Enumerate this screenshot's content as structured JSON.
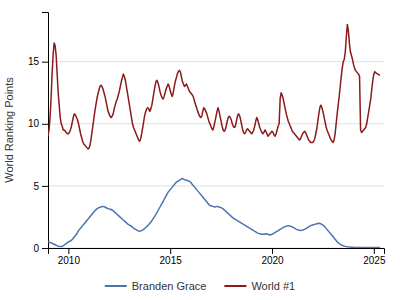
{
  "chart_data": {
    "type": "line",
    "ylabel": "World Ranking Points",
    "xlim": [
      2009.0,
      2025.5
    ],
    "ylim": [
      0,
      19
    ],
    "xticks": [
      2010,
      2015,
      2020,
      2025
    ],
    "yticks": [
      0,
      5,
      10,
      15
    ],
    "grid": "y",
    "legend": "bottom",
    "series": [
      {
        "name": "Branden Grace",
        "color": "#4c72b0",
        "x": [
          2009.0,
          2009.1,
          2009.3,
          2009.5,
          2009.7,
          2010.0,
          2010.1,
          2010.2,
          2010.3,
          2010.4,
          2010.5,
          2010.6,
          2010.7,
          2010.8,
          2010.9,
          2011.0,
          2011.1,
          2011.2,
          2011.3,
          2011.4,
          2011.5,
          2011.6,
          2011.7,
          2011.8,
          2011.9,
          2012.0,
          2012.1,
          2012.2,
          2012.3,
          2012.4,
          2012.5,
          2012.6,
          2012.7,
          2012.8,
          2012.9,
          2013.0,
          2013.1,
          2013.2,
          2013.3,
          2013.4,
          2013.5,
          2013.6,
          2013.7,
          2013.8,
          2013.9,
          2014.0,
          2014.1,
          2014.2,
          2014.3,
          2014.4,
          2014.5,
          2014.6,
          2014.7,
          2014.8,
          2014.9,
          2015.0,
          2015.05,
          2015.1,
          2015.15,
          2015.2,
          2015.25,
          2015.3,
          2015.35,
          2015.4,
          2015.45,
          2015.5,
          2015.55,
          2015.6,
          2015.65,
          2015.7,
          2015.8,
          2015.9,
          2016.0,
          2016.1,
          2016.2,
          2016.3,
          2016.4,
          2016.5,
          2016.6,
          2016.7,
          2016.8,
          2016.9,
          2017.0,
          2017.1,
          2017.2,
          2017.3,
          2017.4,
          2017.5,
          2017.6,
          2017.7,
          2017.8,
          2017.9,
          2018.0,
          2018.1,
          2018.2,
          2018.3,
          2018.4,
          2018.5,
          2018.6,
          2018.7,
          2018.8,
          2018.9,
          2019.0,
          2019.1,
          2019.2,
          2019.3,
          2019.4,
          2019.5,
          2019.6,
          2019.7,
          2019.8,
          2019.9,
          2020.0,
          2020.1,
          2020.2,
          2020.3,
          2020.4,
          2020.5,
          2020.6,
          2020.7,
          2020.8,
          2020.9,
          2021.0,
          2021.1,
          2021.2,
          2021.3,
          2021.4,
          2021.5,
          2021.6,
          2021.7,
          2021.8,
          2021.9,
          2022.0,
          2022.1,
          2022.2,
          2022.3,
          2022.4,
          2022.5,
          2022.6,
          2022.7,
          2022.8,
          2022.9,
          2023.0,
          2023.1,
          2023.2,
          2023.3,
          2023.4,
          2023.5,
          2023.6,
          2023.7,
          2023.8,
          2023.9,
          2024.0,
          2024.2,
          2024.5,
          2024.8,
          2025.0,
          2025.3
        ],
        "values": [
          0.5,
          0.45,
          0.3,
          0.15,
          0.12,
          0.5,
          0.55,
          0.7,
          0.9,
          1.1,
          1.4,
          1.6,
          1.8,
          2.0,
          2.2,
          2.4,
          2.6,
          2.8,
          3.0,
          3.15,
          3.25,
          3.3,
          3.35,
          3.3,
          3.2,
          3.15,
          3.1,
          3.0,
          2.85,
          2.7,
          2.55,
          2.4,
          2.25,
          2.1,
          1.95,
          1.85,
          1.75,
          1.6,
          1.5,
          1.4,
          1.35,
          1.4,
          1.5,
          1.65,
          1.8,
          2.0,
          2.2,
          2.45,
          2.7,
          3.0,
          3.3,
          3.6,
          3.9,
          4.2,
          4.5,
          4.7,
          4.8,
          4.9,
          5.0,
          5.1,
          5.2,
          5.3,
          5.35,
          5.4,
          5.45,
          5.5,
          5.55,
          5.6,
          5.55,
          5.5,
          5.45,
          5.4,
          5.3,
          5.1,
          4.9,
          4.7,
          4.5,
          4.3,
          4.1,
          3.9,
          3.7,
          3.5,
          3.4,
          3.35,
          3.3,
          3.35,
          3.3,
          3.25,
          3.15,
          3.0,
          2.85,
          2.7,
          2.55,
          2.4,
          2.3,
          2.2,
          2.1,
          2.0,
          1.9,
          1.8,
          1.7,
          1.6,
          1.5,
          1.4,
          1.3,
          1.2,
          1.15,
          1.1,
          1.1,
          1.15,
          1.1,
          1.05,
          1.1,
          1.2,
          1.3,
          1.4,
          1.5,
          1.6,
          1.7,
          1.75,
          1.8,
          1.75,
          1.7,
          1.6,
          1.5,
          1.45,
          1.4,
          1.45,
          1.5,
          1.6,
          1.7,
          1.8,
          1.85,
          1.9,
          1.95,
          2.0,
          1.95,
          1.85,
          1.7,
          1.5,
          1.3,
          1.1,
          0.9,
          0.7,
          0.5,
          0.35,
          0.25,
          0.18,
          0.13,
          0.1,
          0.08,
          0.07,
          0.06,
          0.05,
          0.05,
          0.04,
          0.04,
          0.05
        ]
      },
      {
        "name": "World #1",
        "color": "#8b1a1a",
        "x": [
          2009.0,
          2009.05,
          2009.1,
          2009.15,
          2009.2,
          2009.25,
          2009.3,
          2009.35,
          2009.4,
          2009.45,
          2009.5,
          2009.55,
          2009.6,
          2009.65,
          2009.7,
          2009.75,
          2009.8,
          2009.85,
          2009.9,
          2009.95,
          2010.0,
          2010.05,
          2010.1,
          2010.15,
          2010.2,
          2010.25,
          2010.3,
          2010.35,
          2010.4,
          2010.45,
          2010.5,
          2010.55,
          2010.6,
          2010.65,
          2010.7,
          2010.75,
          2010.8,
          2010.85,
          2010.9,
          2010.95,
          2011.0,
          2011.05,
          2011.1,
          2011.15,
          2011.2,
          2011.25,
          2011.3,
          2011.35,
          2011.4,
          2011.45,
          2011.5,
          2011.55,
          2011.6,
          2011.65,
          2011.7,
          2011.75,
          2011.8,
          2011.85,
          2011.9,
          2011.95,
          2012.0,
          2012.05,
          2012.1,
          2012.15,
          2012.2,
          2012.25,
          2012.3,
          2012.35,
          2012.4,
          2012.45,
          2012.5,
          2012.55,
          2012.6,
          2012.65,
          2012.7,
          2012.75,
          2012.8,
          2012.85,
          2012.9,
          2012.95,
          2013.0,
          2013.05,
          2013.1,
          2013.15,
          2013.2,
          2013.25,
          2013.3,
          2013.35,
          2013.4,
          2013.45,
          2013.5,
          2013.55,
          2013.6,
          2013.65,
          2013.7,
          2013.75,
          2013.8,
          2013.85,
          2013.9,
          2013.95,
          2014.0,
          2014.05,
          2014.1,
          2014.15,
          2014.2,
          2014.25,
          2014.3,
          2014.35,
          2014.4,
          2014.45,
          2014.5,
          2014.55,
          2014.6,
          2014.65,
          2014.7,
          2014.75,
          2014.8,
          2014.85,
          2014.9,
          2014.95,
          2015.0,
          2015.05,
          2015.1,
          2015.15,
          2015.2,
          2015.25,
          2015.3,
          2015.35,
          2015.4,
          2015.45,
          2015.5,
          2015.55,
          2015.6,
          2015.65,
          2015.7,
          2015.75,
          2015.8,
          2015.85,
          2015.9,
          2015.95,
          2016.0,
          2016.05,
          2016.1,
          2016.15,
          2016.2,
          2016.25,
          2016.3,
          2016.35,
          2016.4,
          2016.45,
          2016.5,
          2016.55,
          2016.6,
          2016.65,
          2016.7,
          2016.75,
          2016.8,
          2016.85,
          2016.9,
          2016.95,
          2017.0,
          2017.05,
          2017.1,
          2017.15,
          2017.2,
          2017.25,
          2017.3,
          2017.35,
          2017.4,
          2017.45,
          2017.5,
          2017.55,
          2017.6,
          2017.65,
          2017.7,
          2017.75,
          2017.8,
          2017.85,
          2017.9,
          2017.95,
          2018.0,
          2018.05,
          2018.1,
          2018.15,
          2018.2,
          2018.25,
          2018.3,
          2018.35,
          2018.4,
          2018.45,
          2018.5,
          2018.55,
          2018.6,
          2018.65,
          2018.7,
          2018.75,
          2018.8,
          2018.85,
          2018.9,
          2018.95,
          2019.0,
          2019.05,
          2019.1,
          2019.15,
          2019.2,
          2019.25,
          2019.3,
          2019.35,
          2019.4,
          2019.45,
          2019.5,
          2019.55,
          2019.6,
          2019.65,
          2019.7,
          2019.75,
          2019.8,
          2019.85,
          2019.9,
          2019.95,
          2020.0,
          2020.05,
          2020.1,
          2020.15,
          2020.2,
          2020.25,
          2020.3,
          2020.35,
          2020.4,
          2020.45,
          2020.5,
          2020.55,
          2020.6,
          2020.65,
          2020.7,
          2020.75,
          2020.8,
          2020.85,
          2020.9,
          2020.95,
          2021.0,
          2021.05,
          2021.1,
          2021.15,
          2021.2,
          2021.25,
          2021.3,
          2021.35,
          2021.4,
          2021.45,
          2021.5,
          2021.55,
          2021.6,
          2021.65,
          2021.7,
          2021.75,
          2021.8,
          2021.85,
          2021.9,
          2021.95,
          2022.0,
          2022.05,
          2022.1,
          2022.15,
          2022.2,
          2022.25,
          2022.3,
          2022.35,
          2022.4,
          2022.45,
          2022.5,
          2022.55,
          2022.6,
          2022.65,
          2022.7,
          2022.75,
          2022.8,
          2022.85,
          2022.9,
          2022.95,
          2023.0,
          2023.05,
          2023.1,
          2023.15,
          2023.2,
          2023.25,
          2023.3,
          2023.35,
          2023.4,
          2023.45,
          2023.5,
          2023.55,
          2023.6,
          2023.65,
          2023.7,
          2023.75,
          2023.8,
          2023.85,
          2023.9,
          2023.95,
          2024.0,
          2024.05,
          2024.1,
          2024.15,
          2024.2,
          2024.25,
          2024.3,
          2024.35,
          2024.4,
          2024.45,
          2024.5,
          2024.55,
          2024.6,
          2024.65,
          2024.7,
          2024.75,
          2024.8,
          2024.85,
          2024.9,
          2024.95,
          2025.0,
          2025.05,
          2025.1,
          2025.2,
          2025.3
        ],
        "values": [
          9.0,
          9.5,
          10.5,
          12.0,
          14.0,
          15.5,
          16.5,
          16.3,
          15.5,
          14.0,
          12.5,
          11.5,
          10.5,
          10.0,
          9.8,
          9.5,
          9.5,
          9.4,
          9.3,
          9.2,
          9.2,
          9.3,
          9.5,
          9.8,
          10.2,
          10.6,
          10.8,
          10.7,
          10.5,
          10.3,
          10.0,
          9.6,
          9.2,
          8.9,
          8.6,
          8.4,
          8.3,
          8.2,
          8.1,
          8.0,
          8.0,
          8.2,
          8.6,
          9.2,
          9.8,
          10.4,
          11.0,
          11.5,
          12.0,
          12.4,
          12.7,
          13.0,
          13.1,
          13.0,
          12.8,
          12.5,
          12.2,
          11.8,
          11.4,
          11.0,
          10.8,
          10.6,
          10.5,
          10.6,
          10.8,
          11.2,
          11.5,
          11.8,
          12.0,
          12.3,
          12.6,
          13.0,
          13.4,
          13.7,
          14.0,
          13.8,
          13.5,
          13.0,
          12.5,
          12.0,
          11.5,
          11.0,
          10.5,
          10.0,
          9.7,
          9.5,
          9.3,
          9.1,
          8.9,
          8.7,
          8.6,
          8.8,
          9.2,
          9.7,
          10.2,
          10.7,
          11.0,
          11.2,
          11.3,
          11.2,
          11.0,
          11.2,
          11.5,
          12.0,
          12.5,
          13.0,
          13.4,
          13.5,
          13.3,
          13.0,
          12.6,
          12.3,
          12.1,
          12.0,
          12.2,
          12.5,
          12.8,
          13.0,
          13.2,
          13.0,
          12.7,
          12.4,
          12.2,
          12.5,
          13.0,
          13.4,
          13.7,
          14.0,
          14.2,
          14.3,
          14.2,
          13.8,
          13.4,
          13.2,
          13.0,
          13.1,
          13.2,
          13.0,
          12.8,
          12.6,
          12.5,
          12.4,
          12.3,
          12.1,
          11.8,
          11.5,
          11.3,
          11.0,
          10.8,
          10.6,
          10.5,
          10.6,
          11.0,
          11.3,
          11.2,
          11.0,
          10.8,
          10.5,
          10.2,
          10.0,
          9.8,
          9.6,
          9.5,
          9.8,
          10.2,
          10.6,
          11.0,
          11.3,
          11.0,
          10.6,
          10.2,
          9.8,
          9.5,
          9.4,
          9.5,
          9.8,
          10.2,
          10.5,
          10.6,
          10.5,
          10.3,
          10.0,
          9.8,
          9.7,
          9.8,
          10.2,
          10.6,
          10.8,
          10.7,
          10.4,
          10.0,
          9.6,
          9.3,
          9.2,
          9.3,
          9.5,
          9.6,
          9.5,
          9.4,
          9.3,
          9.2,
          9.3,
          9.5,
          9.8,
          10.2,
          10.5,
          10.3,
          10.0,
          9.7,
          9.5,
          9.3,
          9.2,
          9.3,
          9.5,
          9.4,
          9.2,
          9.0,
          9.1,
          9.2,
          9.3,
          9.4,
          9.3,
          9.1,
          9.0,
          9.2,
          9.5,
          9.8,
          10.0,
          12.0,
          12.5,
          12.3,
          12.0,
          11.6,
          11.2,
          10.8,
          10.5,
          10.2,
          10.0,
          9.8,
          9.6,
          9.4,
          9.3,
          9.2,
          9.1,
          9.0,
          8.9,
          8.8,
          8.7,
          8.8,
          9.0,
          9.2,
          9.3,
          9.4,
          9.3,
          9.1,
          8.9,
          8.7,
          8.6,
          8.5,
          8.5,
          8.5,
          8.6,
          8.8,
          9.2,
          9.6,
          10.2,
          10.8,
          11.3,
          11.5,
          11.3,
          11.0,
          10.6,
          10.2,
          9.8,
          9.5,
          9.3,
          9.1,
          8.9,
          8.7,
          8.6,
          8.5,
          8.7,
          9.2,
          10.0,
          10.8,
          11.5,
          12.2,
          13.0,
          13.8,
          14.5,
          15.0,
          15.2,
          15.8,
          17.0,
          18.0,
          17.5,
          16.5,
          15.8,
          15.5,
          15.2,
          14.8,
          14.5,
          14.3,
          14.2,
          14.1,
          14.0,
          13.8,
          9.5,
          9.3,
          9.4,
          9.5,
          9.6,
          9.7,
          10.0,
          10.5,
          11.0,
          11.5,
          12.0,
          12.8,
          13.5,
          14.0,
          14.2,
          14.1,
          14.0,
          13.9
        ]
      }
    ]
  }
}
